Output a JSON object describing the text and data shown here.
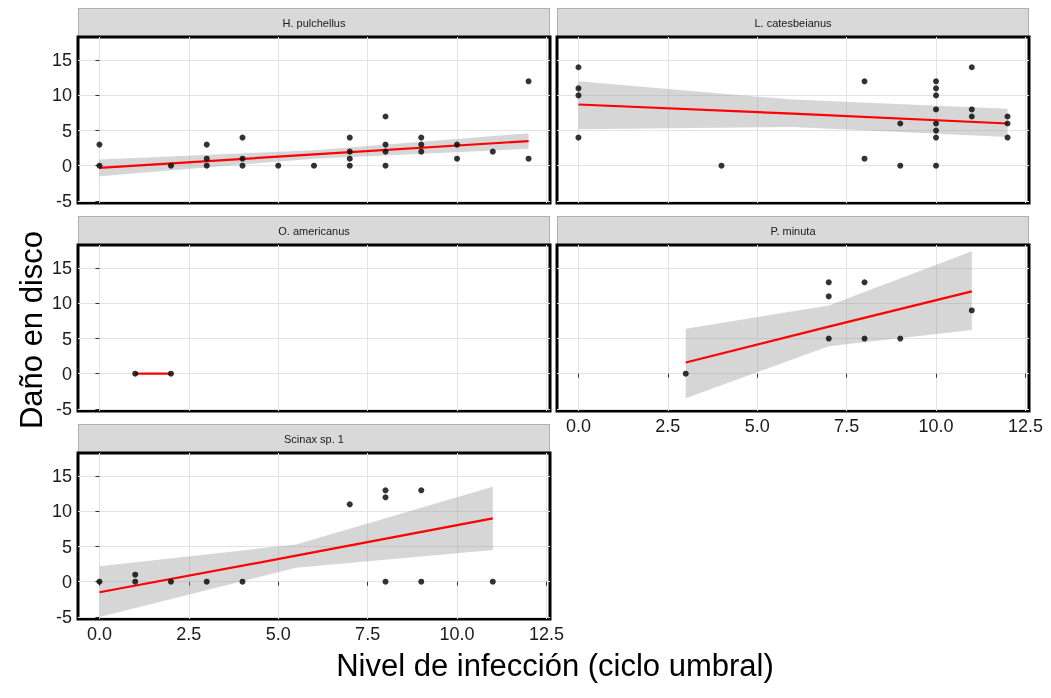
{
  "chart_data": [
    {
      "type": "scatter",
      "title": "H. pulchellus",
      "xlim": [
        -0.6,
        12.6
      ],
      "ylim": [
        -5.3,
        18.3
      ],
      "xticks": [
        0,
        2.5,
        5,
        7.5,
        10,
        12.5
      ],
      "yticks": [
        -5,
        0,
        5,
        10,
        15
      ],
      "grid": true,
      "tick_labels": "y",
      "series": [
        {
          "type": "scatter",
          "color": "#000000",
          "marker": "circle",
          "x": [
            0,
            0,
            2,
            3,
            3,
            3,
            4,
            4,
            4,
            5,
            6,
            7,
            7,
            7,
            7,
            8,
            8,
            8,
            8,
            9,
            9,
            9,
            10,
            10,
            11,
            12,
            12
          ],
          "values": [
            3,
            0,
            0,
            3,
            1,
            0,
            4,
            1,
            0,
            0,
            0,
            4,
            2,
            1,
            0,
            7,
            3,
            2,
            0,
            4,
            3,
            2,
            3,
            1,
            2,
            12,
            1
          ]
        },
        {
          "type": "line",
          "color": "#ff0000",
          "marker": "none",
          "x": [
            0,
            6,
            12
          ],
          "values": [
            -0.3,
            1.6,
            3.5
          ],
          "lower": [
            -1.5,
            1.0,
            2.4
          ],
          "upper": [
            0.9,
            2.2,
            4.6
          ]
        }
      ]
    },
    {
      "type": "scatter",
      "title": "L. catesbeianus",
      "xlim": [
        -0.6,
        12.6
      ],
      "ylim": [
        -5.3,
        18.3
      ],
      "xticks": [
        0,
        2.5,
        5,
        7.5,
        10,
        12.5
      ],
      "yticks": [
        -5,
        0,
        5,
        10,
        15
      ],
      "grid": true,
      "tick_labels": false,
      "series": [
        {
          "type": "scatter",
          "color": "#000000",
          "marker": "circle",
          "x": [
            0,
            0,
            0,
            0,
            4,
            8,
            8,
            9,
            9,
            10,
            10,
            10,
            10,
            10,
            10,
            10,
            10,
            11,
            11,
            11,
            12,
            12,
            12
          ],
          "values": [
            14,
            11,
            10,
            4,
            0,
            12,
            1,
            0,
            6,
            12,
            11,
            10,
            8,
            6,
            5,
            4,
            0,
            14,
            8,
            7,
            7,
            6,
            4
          ]
        },
        {
          "type": "line",
          "color": "#ff0000",
          "marker": "none",
          "x": [
            0,
            6,
            12
          ],
          "values": [
            8.7,
            7.4,
            6.0
          ],
          "lower": [
            5.2,
            5.5,
            4.1
          ],
          "upper": [
            12.0,
            9.4,
            8.1
          ]
        }
      ]
    },
    {
      "type": "scatter",
      "title": "O. americanus",
      "xlim": [
        -0.6,
        12.6
      ],
      "ylim": [
        -5.3,
        18.3
      ],
      "xticks": [
        0,
        2.5,
        5,
        7.5,
        10,
        12.5
      ],
      "yticks": [
        -5,
        0,
        5,
        10,
        15
      ],
      "grid": true,
      "tick_labels": "y",
      "series": [
        {
          "type": "scatter",
          "color": "#000000",
          "marker": "circle",
          "x": [
            1,
            2
          ],
          "values": [
            0,
            0
          ]
        },
        {
          "type": "line",
          "color": "#ff0000",
          "marker": "none",
          "x": [
            1,
            2
          ],
          "values": [
            0,
            0
          ]
        }
      ]
    },
    {
      "type": "scatter",
      "title": "P. minuta",
      "xlim": [
        -0.6,
        12.6
      ],
      "ylim": [
        -5.3,
        18.3
      ],
      "xticks": [
        {
          "value": 0,
          "label": "0.0"
        },
        {
          "value": 2.5,
          "label": "2.5"
        },
        {
          "value": 5,
          "label": "5.0"
        },
        {
          "value": 7.5,
          "label": "7.5"
        },
        {
          "value": 10,
          "label": "10.0"
        },
        {
          "value": 12.5,
          "label": "12.5"
        }
      ],
      "yticks": [
        -5,
        0,
        5,
        10,
        15
      ],
      "grid": true,
      "tick_labels": "x",
      "series": [
        {
          "type": "scatter",
          "color": "#000000",
          "marker": "circle",
          "x": [
            3,
            7,
            7,
            7,
            8,
            8,
            9,
            11
          ],
          "values": [
            0,
            13,
            11,
            5,
            13,
            5,
            5,
            9
          ]
        },
        {
          "type": "line",
          "color": "#ff0000",
          "marker": "none",
          "x": [
            3,
            7,
            11
          ],
          "values": [
            1.6,
            6.7,
            11.7
          ],
          "lower": [
            -3.5,
            3.9,
            6.2
          ],
          "upper": [
            6.4,
            9.7,
            17.4
          ]
        }
      ]
    },
    {
      "type": "scatter",
      "title": "Scinax sp. 1",
      "xlabel": "Nivel de infección (ciclo umbral)",
      "ylabel": "Daño en disco",
      "xlim": [
        -0.6,
        12.6
      ],
      "ylim": [
        -5.3,
        18.3
      ],
      "xticks": [
        {
          "value": 0,
          "label": "0.0"
        },
        {
          "value": 2.5,
          "label": "2.5"
        },
        {
          "value": 5,
          "label": "5.0"
        },
        {
          "value": 7.5,
          "label": "7.5"
        },
        {
          "value": 10,
          "label": "10.0"
        },
        {
          "value": 12.5,
          "label": "12.5"
        }
      ],
      "yticks": [
        -5,
        0,
        5,
        10,
        15
      ],
      "grid": true,
      "series": [
        {
          "type": "scatter",
          "color": "#000000",
          "marker": "circle",
          "x": [
            0,
            1,
            1,
            2,
            3,
            4,
            7,
            8,
            8,
            8,
            9,
            9,
            11
          ],
          "values": [
            0,
            1,
            0,
            0,
            0,
            0,
            11,
            13,
            12,
            0,
            13,
            0,
            0
          ]
        },
        {
          "type": "line",
          "color": "#ff0000",
          "marker": "none",
          "x": [
            0,
            5.5,
            11
          ],
          "values": [
            -1.5,
            3.7,
            9.0
          ],
          "lower": [
            -5.0,
            2.0,
            4.5
          ],
          "upper": [
            2.2,
            5.3,
            13.5
          ]
        }
      ]
    }
  ]
}
